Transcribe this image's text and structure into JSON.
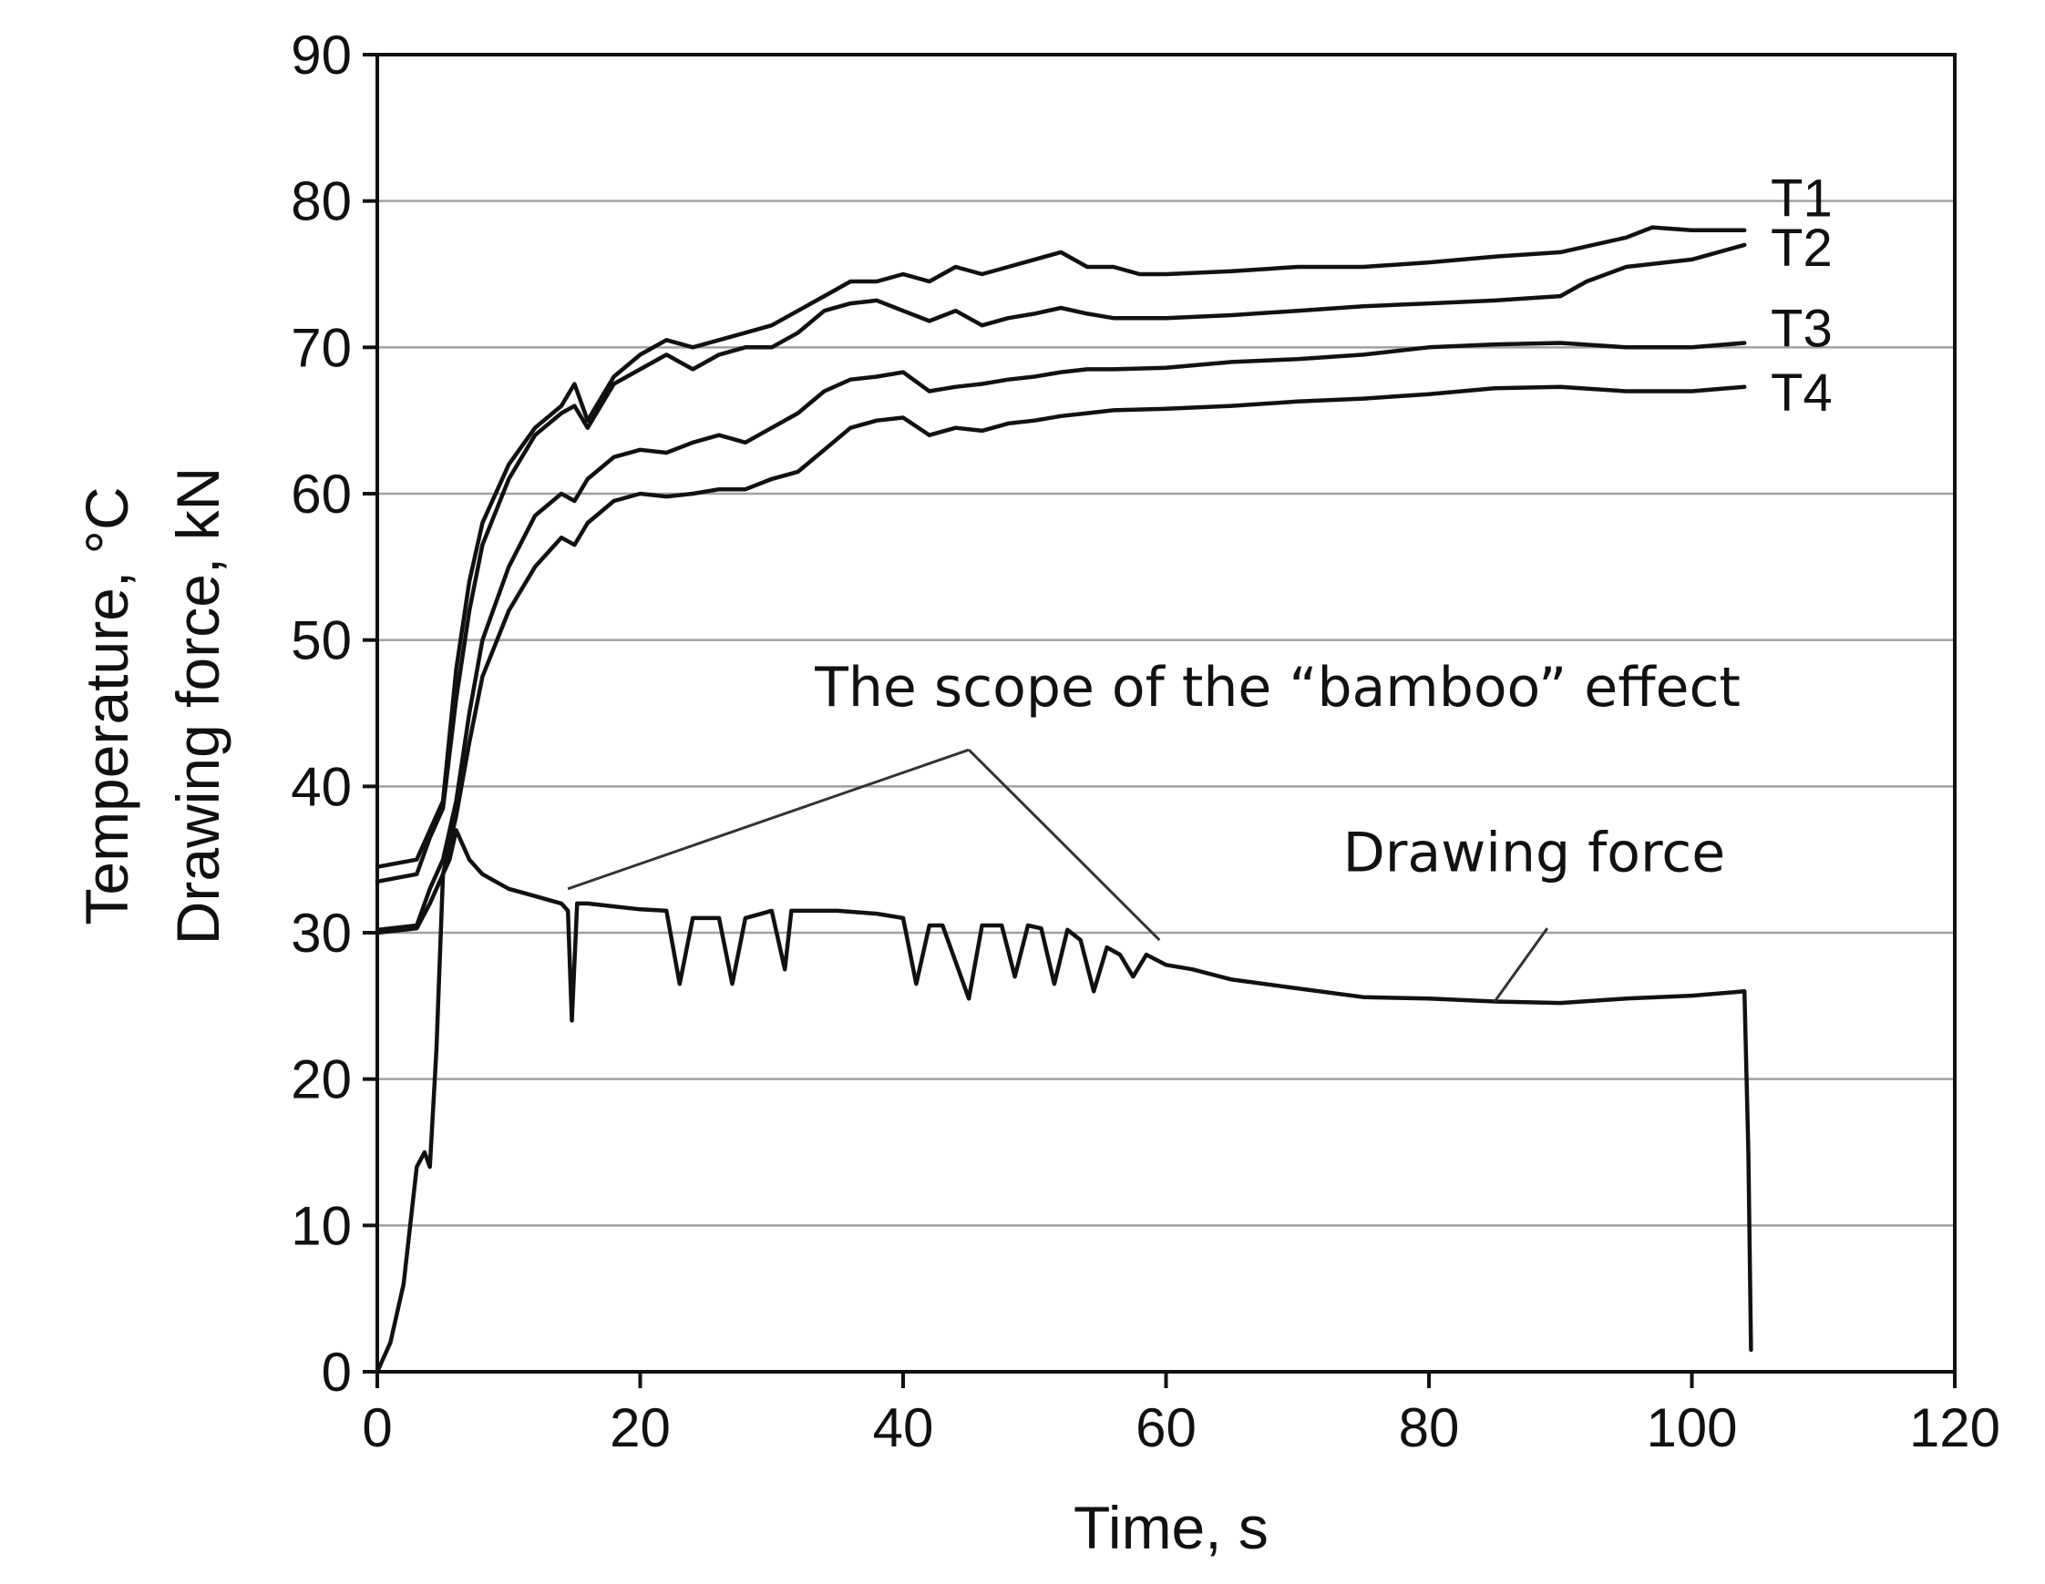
{
  "chart_data": {
    "type": "line",
    "xlabel": "Time, s",
    "ylabel_lines": [
      "Temperature, °C",
      "Drawing force, kN"
    ],
    "xlim": [
      0,
      120
    ],
    "ylim": [
      0,
      90
    ],
    "x_ticks": [
      0,
      20,
      40,
      60,
      80,
      100,
      120
    ],
    "y_ticks": [
      0,
      10,
      20,
      30,
      40,
      50,
      60,
      70,
      80,
      90
    ],
    "x_tick_labels": [
      "0",
      "20",
      "40",
      "60",
      "80",
      "100",
      "120"
    ],
    "y_tick_labels": [
      "0",
      "10",
      "20",
      "30",
      "40",
      "50",
      "60",
      "70",
      "80",
      "90"
    ],
    "grid": "horizontal",
    "legend": "inline labels at right end of lines",
    "series": [
      {
        "name": "T1",
        "points": [
          [
            0,
            34.5
          ],
          [
            3,
            35
          ],
          [
            4,
            37
          ],
          [
            5,
            39
          ],
          [
            6,
            48
          ],
          [
            7,
            54
          ],
          [
            8,
            58
          ],
          [
            10,
            62
          ],
          [
            12,
            64.5
          ],
          [
            14,
            66
          ],
          [
            15,
            67.5
          ],
          [
            16,
            65
          ],
          [
            18,
            68
          ],
          [
            20,
            69.5
          ],
          [
            22,
            70.5
          ],
          [
            24,
            70
          ],
          [
            26,
            70.5
          ],
          [
            28,
            71
          ],
          [
            30,
            71.5
          ],
          [
            32,
            72.5
          ],
          [
            34,
            73.5
          ],
          [
            36,
            74.5
          ],
          [
            38,
            74.5
          ],
          [
            40,
            75
          ],
          [
            42,
            74.5
          ],
          [
            44,
            75.5
          ],
          [
            46,
            75
          ],
          [
            48,
            75.5
          ],
          [
            50,
            76
          ],
          [
            52,
            76.5
          ],
          [
            54,
            75.5
          ],
          [
            56,
            75.5
          ],
          [
            58,
            75
          ],
          [
            60,
            75
          ],
          [
            65,
            75.2
          ],
          [
            70,
            75.5
          ],
          [
            75,
            75.5
          ],
          [
            80,
            75.8
          ],
          [
            85,
            76.2
          ],
          [
            90,
            76.5
          ],
          [
            95,
            77.5
          ],
          [
            97,
            78.2
          ],
          [
            100,
            78
          ],
          [
            104,
            78
          ]
        ]
      },
      {
        "name": "T2",
        "points": [
          [
            0,
            33.5
          ],
          [
            3,
            34
          ],
          [
            4,
            36.5
          ],
          [
            5,
            38.5
          ],
          [
            6,
            46
          ],
          [
            7,
            52
          ],
          [
            8,
            56.5
          ],
          [
            10,
            61
          ],
          [
            12,
            64
          ],
          [
            14,
            65.5
          ],
          [
            15,
            66
          ],
          [
            16,
            64.5
          ],
          [
            18,
            67.5
          ],
          [
            20,
            68.5
          ],
          [
            22,
            69.5
          ],
          [
            24,
            68.5
          ],
          [
            26,
            69.5
          ],
          [
            28,
            70
          ],
          [
            30,
            70
          ],
          [
            32,
            71
          ],
          [
            34,
            72.5
          ],
          [
            36,
            73
          ],
          [
            38,
            73.2
          ],
          [
            40,
            72.5
          ],
          [
            42,
            71.8
          ],
          [
            44,
            72.5
          ],
          [
            46,
            71.5
          ],
          [
            48,
            72
          ],
          [
            50,
            72.3
          ],
          [
            52,
            72.7
          ],
          [
            54,
            72.3
          ],
          [
            56,
            72
          ],
          [
            60,
            72
          ],
          [
            65,
            72.2
          ],
          [
            70,
            72.5
          ],
          [
            75,
            72.8
          ],
          [
            80,
            73
          ],
          [
            85,
            73.2
          ],
          [
            90,
            73.5
          ],
          [
            92,
            74.5
          ],
          [
            95,
            75.5
          ],
          [
            100,
            76
          ],
          [
            104,
            77
          ]
        ]
      },
      {
        "name": "T3",
        "points": [
          [
            0,
            30.2
          ],
          [
            3,
            30.5
          ],
          [
            4,
            33
          ],
          [
            5,
            35
          ],
          [
            6,
            39
          ],
          [
            7,
            45
          ],
          [
            8,
            50
          ],
          [
            10,
            55
          ],
          [
            12,
            58.5
          ],
          [
            14,
            60
          ],
          [
            15,
            59.5
          ],
          [
            16,
            61
          ],
          [
            18,
            62.5
          ],
          [
            20,
            63
          ],
          [
            22,
            62.8
          ],
          [
            24,
            63.5
          ],
          [
            26,
            64
          ],
          [
            28,
            63.5
          ],
          [
            30,
            64.5
          ],
          [
            32,
            65.5
          ],
          [
            34,
            67
          ],
          [
            36,
            67.8
          ],
          [
            38,
            68
          ],
          [
            40,
            68.3
          ],
          [
            42,
            67
          ],
          [
            44,
            67.3
          ],
          [
            46,
            67.5
          ],
          [
            48,
            67.8
          ],
          [
            50,
            68
          ],
          [
            52,
            68.3
          ],
          [
            54,
            68.5
          ],
          [
            56,
            68.5
          ],
          [
            60,
            68.6
          ],
          [
            65,
            69
          ],
          [
            70,
            69.2
          ],
          [
            75,
            69.5
          ],
          [
            80,
            70
          ],
          [
            85,
            70.2
          ],
          [
            90,
            70.3
          ],
          [
            95,
            70
          ],
          [
            100,
            70
          ],
          [
            104,
            70.3
          ]
        ]
      },
      {
        "name": "T4",
        "points": [
          [
            0,
            30
          ],
          [
            3,
            30.3
          ],
          [
            4,
            32
          ],
          [
            5,
            34
          ],
          [
            6,
            38
          ],
          [
            7,
            43
          ],
          [
            8,
            47.5
          ],
          [
            10,
            52
          ],
          [
            12,
            55
          ],
          [
            14,
            57
          ],
          [
            15,
            56.5
          ],
          [
            16,
            58
          ],
          [
            18,
            59.5
          ],
          [
            20,
            60
          ],
          [
            22,
            59.8
          ],
          [
            24,
            60
          ],
          [
            26,
            60.3
          ],
          [
            28,
            60.3
          ],
          [
            30,
            61
          ],
          [
            32,
            61.5
          ],
          [
            34,
            63
          ],
          [
            36,
            64.5
          ],
          [
            38,
            65
          ],
          [
            40,
            65.2
          ],
          [
            42,
            64
          ],
          [
            44,
            64.5
          ],
          [
            46,
            64.3
          ],
          [
            48,
            64.8
          ],
          [
            50,
            65
          ],
          [
            52,
            65.3
          ],
          [
            54,
            65.5
          ],
          [
            56,
            65.7
          ],
          [
            60,
            65.8
          ],
          [
            65,
            66
          ],
          [
            70,
            66.3
          ],
          [
            75,
            66.5
          ],
          [
            80,
            66.8
          ],
          [
            85,
            67.2
          ],
          [
            90,
            67.3
          ],
          [
            95,
            67
          ],
          [
            100,
            67
          ],
          [
            104,
            67.3
          ]
        ]
      },
      {
        "name": "Drawing force",
        "points": [
          [
            0,
            0
          ],
          [
            1,
            2
          ],
          [
            2,
            6
          ],
          [
            3,
            14
          ],
          [
            3.6,
            15
          ],
          [
            4,
            14
          ],
          [
            4.5,
            22
          ],
          [
            5,
            34
          ],
          [
            5.5,
            35
          ],
          [
            6,
            37
          ],
          [
            6.5,
            36
          ],
          [
            7,
            35
          ],
          [
            8,
            34
          ],
          [
            9,
            33.5
          ],
          [
            10,
            33
          ],
          [
            12,
            32.5
          ],
          [
            14,
            32
          ],
          [
            14.5,
            31.5
          ],
          [
            14.8,
            24
          ],
          [
            15.2,
            32
          ],
          [
            16,
            32
          ],
          [
            18,
            31.8
          ],
          [
            20,
            31.6
          ],
          [
            22,
            31.5
          ],
          [
            23,
            26.5
          ],
          [
            24,
            31
          ],
          [
            26,
            31
          ],
          [
            27,
            26.5
          ],
          [
            28,
            31
          ],
          [
            30,
            31.5
          ],
          [
            31,
            27.5
          ],
          [
            31.5,
            31.5
          ],
          [
            35,
            31.5
          ],
          [
            38,
            31.3
          ],
          [
            40,
            31
          ],
          [
            41,
            26.5
          ],
          [
            42,
            30.5
          ],
          [
            43,
            30.5
          ],
          [
            45,
            25.5
          ],
          [
            46,
            30.5
          ],
          [
            47.5,
            30.5
          ],
          [
            48.5,
            27
          ],
          [
            49.5,
            30.5
          ],
          [
            50.5,
            30.3
          ],
          [
            51.5,
            26.5
          ],
          [
            52.5,
            30.2
          ],
          [
            53.5,
            29.5
          ],
          [
            54.5,
            26
          ],
          [
            55.5,
            29
          ],
          [
            56.5,
            28.5
          ],
          [
            57.5,
            27
          ],
          [
            58.5,
            28.5
          ],
          [
            60,
            27.8
          ],
          [
            62,
            27.5
          ],
          [
            65,
            26.8
          ],
          [
            70,
            26.2
          ],
          [
            75,
            25.6
          ],
          [
            80,
            25.5
          ],
          [
            85,
            25.3
          ],
          [
            90,
            25.2
          ],
          [
            95,
            25.5
          ],
          [
            100,
            25.7
          ],
          [
            104,
            26
          ],
          [
            104.3,
            15
          ],
          [
            104.5,
            1.5
          ]
        ]
      }
    ],
    "annotations": [
      {
        "text": "The scope of the “bamboo” effect",
        "points_to": [
          [
            14.5,
            33
          ],
          [
            59.5,
            29.5
          ]
        ]
      },
      {
        "text": "Drawing force",
        "points_to": [
          [
            85,
            25.3
          ]
        ]
      }
    ]
  }
}
